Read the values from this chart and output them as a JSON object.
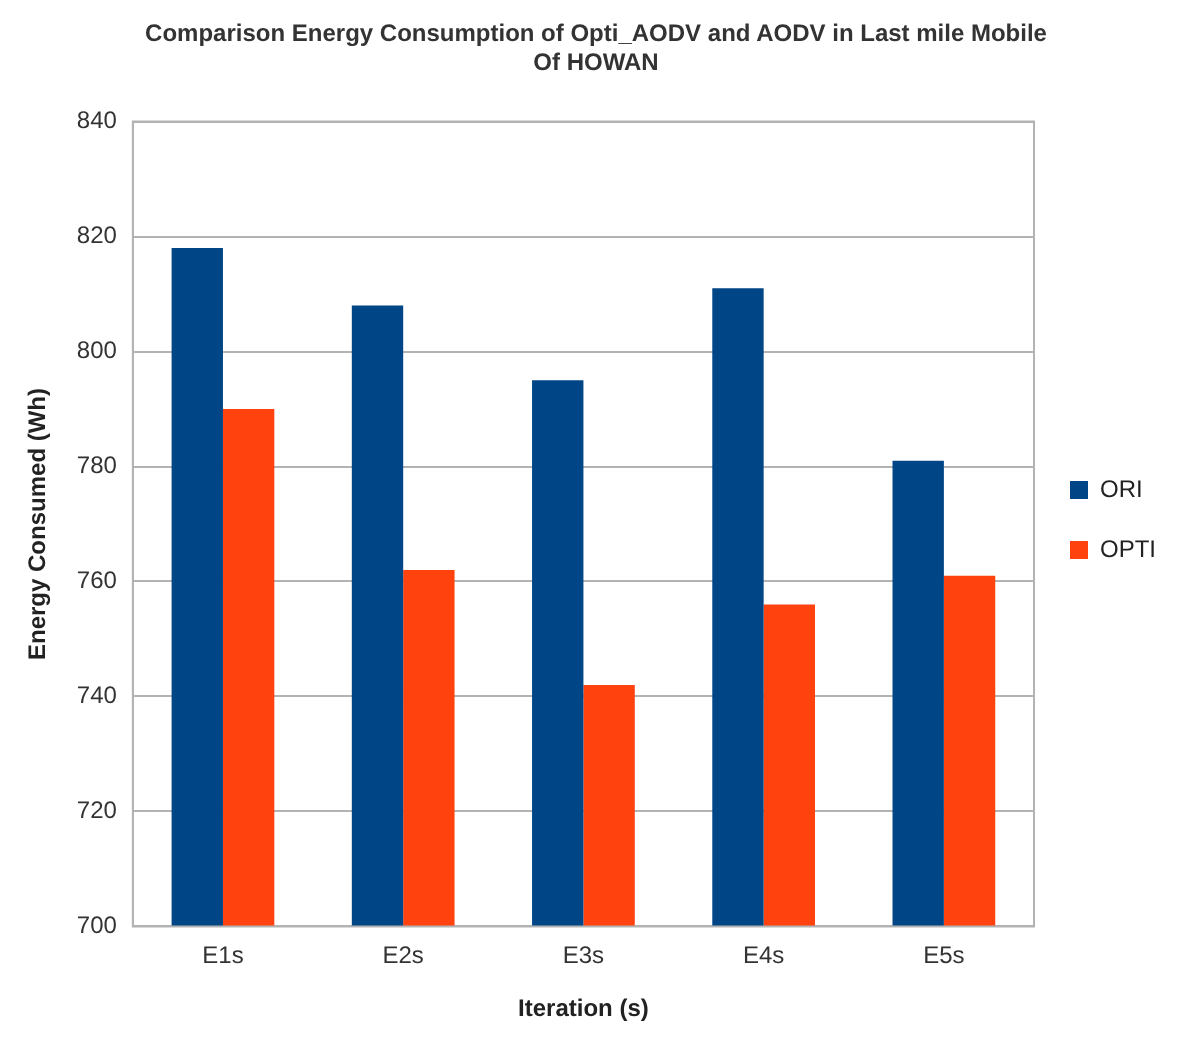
{
  "chart_data": {
    "type": "bar",
    "title": "Comparison Energy Consumption of Opti_AODV and AODV in Last mile Mobile Of HOWAN",
    "xlabel": "Iteration (s)",
    "ylabel": "Energy Consumed (Wh)",
    "categories": [
      "E1s",
      "E2s",
      "E3s",
      "E4s",
      "E5s"
    ],
    "series": [
      {
        "name": "ORI",
        "color": "#004586",
        "values": [
          818,
          808,
          795,
          811,
          781
        ]
      },
      {
        "name": "OPTI",
        "color": "#ff420e",
        "values": [
          790,
          762,
          742,
          756,
          761
        ]
      }
    ],
    "ylim": [
      700,
      840
    ],
    "yticks": [
      700,
      720,
      740,
      760,
      780,
      800,
      820,
      840
    ],
    "grid": "y",
    "legend": "right"
  }
}
